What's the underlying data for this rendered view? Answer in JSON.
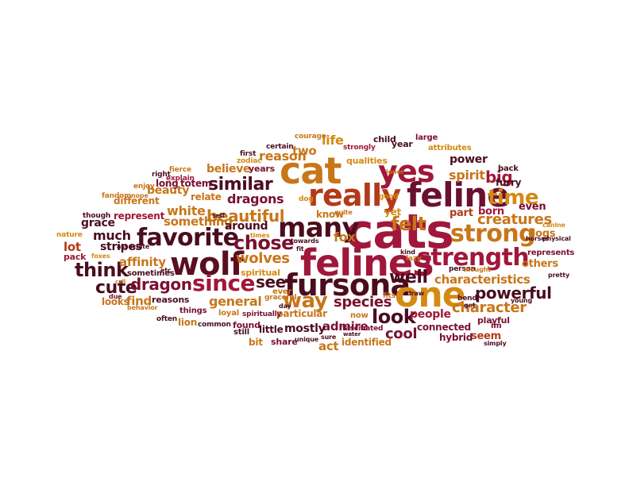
{
  "colors": {
    "dark_maroon": "#4a0d1e",
    "maroon": "#7a1030",
    "crimson": "#a0173a",
    "rust": "#b8451a",
    "orange": "#d4731a",
    "amber": "#d9960f"
  },
  "words": [
    {
      "text": "cats",
      "color": "#a0173a"
    },
    {
      "text": "felines",
      "color": "#a0173a"
    },
    {
      "text": "fursona",
      "color": "#4a0d1e"
    },
    {
      "text": "cat",
      "color": "#c8761a"
    },
    {
      "text": "feline",
      "color": "#6a1030"
    },
    {
      "text": "one",
      "color": "#d48a12"
    },
    {
      "text": "wolf",
      "color": "#5a0f20"
    },
    {
      "text": "many",
      "color": "#4a0d1e"
    },
    {
      "text": "really",
      "color": "#b23a1a"
    },
    {
      "text": "yes",
      "color": "#a0173a"
    },
    {
      "text": "favorite",
      "color": "#4a0d1e"
    },
    {
      "text": "strength",
      "color": "#a0173a"
    },
    {
      "text": "strong",
      "color": "#c8761a"
    },
    {
      "text": "since",
      "color": "#a0173a"
    },
    {
      "text": "way",
      "color": "#c8761a"
    },
    {
      "text": "time",
      "color": "#d48a12"
    },
    {
      "text": "look",
      "color": "#4a0d1e"
    },
    {
      "text": "chose",
      "color": "#7a1030"
    },
    {
      "text": "think",
      "color": "#4a0d1e"
    },
    {
      "text": "beautiful",
      "color": "#c8761a"
    },
    {
      "text": "felt",
      "color": "#c8761a"
    },
    {
      "text": "well",
      "color": "#4a0d1e"
    },
    {
      "text": "similar",
      "color": "#4a0d1e"
    },
    {
      "text": "cute",
      "color": "#4a0d1e"
    },
    {
      "text": "dragon",
      "color": "#7a1030"
    },
    {
      "text": "wolves",
      "color": "#c8761a"
    },
    {
      "text": "see",
      "color": "#4a0d1e"
    },
    {
      "text": "creatures",
      "color": "#c8761a"
    },
    {
      "text": "characteristics",
      "color": "#c8761a"
    },
    {
      "text": "powerful",
      "color": "#4a0d1e"
    },
    {
      "text": "species",
      "color": "#7a1030"
    },
    {
      "text": "character",
      "color": "#c8761a"
    },
    {
      "text": "big",
      "color": "#a0173a"
    },
    {
      "text": "spirit",
      "color": "#c8761a"
    },
    {
      "text": "reason",
      "color": "#c8761a"
    },
    {
      "text": "life",
      "color": "#d48a12"
    },
    {
      "text": "two",
      "color": "#c8761a"
    },
    {
      "text": "white",
      "color": "#c8761a"
    },
    {
      "text": "something",
      "color": "#c8761a"
    },
    {
      "text": "dragons",
      "color": "#7a1030"
    },
    {
      "text": "around",
      "color": "#4a0d1e"
    },
    {
      "text": "much",
      "color": "#4a0d1e"
    },
    {
      "text": "cool",
      "color": "#7a1030"
    },
    {
      "text": "general",
      "color": "#c8761a"
    },
    {
      "text": "affinity",
      "color": "#c8761a"
    },
    {
      "text": "stripes",
      "color": "#4a0d1e"
    },
    {
      "text": "lot",
      "color": "#b23a1a"
    },
    {
      "text": "fox",
      "color": "#c8761a"
    },
    {
      "text": "admire",
      "color": "#7a1030"
    },
    {
      "text": "people",
      "color": "#a0173a"
    },
    {
      "text": "act",
      "color": "#c8761a"
    },
    {
      "text": "mostly",
      "color": "#4a0d1e"
    },
    {
      "text": "power",
      "color": "#4a0d1e"
    },
    {
      "text": "others",
      "color": "#c8761a"
    },
    {
      "text": "find",
      "color": "#c8761a"
    },
    {
      "text": "beauty",
      "color": "#c8761a"
    },
    {
      "text": "grace",
      "color": "#4a0d1e"
    },
    {
      "text": "believe",
      "color": "#c8761a"
    },
    {
      "text": "even",
      "color": "#7a1030"
    },
    {
      "text": "dogs",
      "color": "#c8761a"
    },
    {
      "text": "furry",
      "color": "#4a0d1e"
    },
    {
      "text": "part",
      "color": "#b23a1a"
    },
    {
      "text": "born",
      "color": "#a0173a"
    },
    {
      "text": "seem",
      "color": "#b23a1a"
    },
    {
      "text": "hybrid",
      "color": "#7a1030"
    },
    {
      "text": "connected",
      "color": "#7a1030"
    },
    {
      "text": "identified",
      "color": "#c8761a"
    },
    {
      "text": "particular",
      "color": "#c8761a"
    },
    {
      "text": "spiritual",
      "color": "#d48a12"
    },
    {
      "text": "yet",
      "color": "#d48a12"
    },
    {
      "text": "know",
      "color": "#c8761a"
    },
    {
      "text": "qualities",
      "color": "#d48a12"
    },
    {
      "text": "years",
      "color": "#7a1030"
    },
    {
      "text": "totem",
      "color": "#7a1030"
    },
    {
      "text": "relate",
      "color": "#c8761a"
    },
    {
      "text": "long",
      "color": "#7a1030"
    },
    {
      "text": "represent",
      "color": "#a0173a"
    },
    {
      "text": "different",
      "color": "#c8761a"
    },
    {
      "text": "reasons",
      "color": "#4a0d1e"
    },
    {
      "text": "looks",
      "color": "#c8761a"
    },
    {
      "text": "lion",
      "color": "#c8761a"
    },
    {
      "text": "little",
      "color": "#4a0d1e"
    },
    {
      "text": "bit",
      "color": "#c8761a"
    },
    {
      "text": "share",
      "color": "#7a1030"
    },
    {
      "text": "found",
      "color": "#7a1030"
    },
    {
      "text": "sometimes",
      "color": "#4a0d1e"
    },
    {
      "text": "represents",
      "color": "#7a1030"
    },
    {
      "text": "back",
      "color": "#4a0d1e"
    },
    {
      "text": "child",
      "color": "#4a0d1e"
    },
    {
      "text": "year",
      "color": "#4a0d1e"
    },
    {
      "text": "large",
      "color": "#7a1030"
    },
    {
      "text": "attributes",
      "color": "#d48a12"
    },
    {
      "text": "courage",
      "color": "#c8761a"
    },
    {
      "text": "strongly",
      "color": "#a0173a"
    },
    {
      "text": "certain",
      "color": "#4a0d1e"
    },
    {
      "text": "first",
      "color": "#4a0d1e"
    },
    {
      "text": "zodiac",
      "color": "#d48a12"
    },
    {
      "text": "fierce",
      "color": "#c8761a"
    },
    {
      "text": "explain",
      "color": "#a0173a"
    },
    {
      "text": "right",
      "color": "#4a0d1e"
    },
    {
      "text": "enjoy",
      "color": "#c8761a"
    },
    {
      "text": "fandom",
      "color": "#c8761a"
    },
    {
      "text": "nope",
      "color": "#c8761a"
    },
    {
      "text": "though",
      "color": "#4a0d1e"
    },
    {
      "text": "nature",
      "color": "#d48a12"
    },
    {
      "text": "pack",
      "color": "#a0173a"
    },
    {
      "text": "foxes",
      "color": "#d48a12"
    },
    {
      "text": "associate",
      "color": "#4a0d1e"
    },
    {
      "text": "due",
      "color": "#7a1030"
    },
    {
      "text": "behavior",
      "color": "#c8761a"
    },
    {
      "text": "often",
      "color": "#4a0d1e"
    },
    {
      "text": "things",
      "color": "#7a1030"
    },
    {
      "text": "loyal",
      "color": "#c8761a"
    },
    {
      "text": "common",
      "color": "#4a0d1e"
    },
    {
      "text": "spiritually",
      "color": "#7a1030"
    },
    {
      "text": "graceful",
      "color": "#c8761a"
    },
    {
      "text": "day",
      "color": "#4a0d1e"
    },
    {
      "text": "ever",
      "color": "#c8761a"
    },
    {
      "text": "still",
      "color": "#4a0d1e"
    },
    {
      "text": "unique",
      "color": "#4a0d1e"
    },
    {
      "text": "sure",
      "color": "#4a0d1e"
    },
    {
      "text": "now",
      "color": "#c8761a"
    },
    {
      "text": "fascinated",
      "color": "#7a1030"
    },
    {
      "text": "water",
      "color": "#4a0d1e"
    },
    {
      "text": "fits",
      "color": "#c8761a"
    },
    {
      "text": "draw",
      "color": "#4a0d1e"
    },
    {
      "text": "lazy",
      "color": "#c8761a"
    },
    {
      "text": "kind",
      "color": "#4a0d1e"
    },
    {
      "text": "person",
      "color": "#4a0d1e"
    },
    {
      "text": "thought",
      "color": "#c8761a"
    },
    {
      "text": "bend",
      "color": "#4a0d1e"
    },
    {
      "text": "get",
      "color": "#4a0d1e"
    },
    {
      "text": "playful",
      "color": "#7a1030"
    },
    {
      "text": "im",
      "color": "#7a1030"
    },
    {
      "text": "simply",
      "color": "#4a0d1e"
    },
    {
      "text": "young",
      "color": "#4a0d1e"
    },
    {
      "text": "pretty",
      "color": "#4a0d1e"
    },
    {
      "text": "canine",
      "color": "#d48a12"
    },
    {
      "text": "horses",
      "color": "#4a0d1e"
    },
    {
      "text": "physical",
      "color": "#4a0d1e"
    },
    {
      "text": "good",
      "color": "#d48a12"
    },
    {
      "text": "quite",
      "color": "#c8761a"
    },
    {
      "text": "loner",
      "color": "#c8761a"
    },
    {
      "text": "dog",
      "color": "#d48a12"
    },
    {
      "text": "self",
      "color": "#4a0d1e"
    },
    {
      "text": "times",
      "color": "#d48a12"
    },
    {
      "text": "fit",
      "color": "#4a0d1e"
    },
    {
      "text": "towards",
      "color": "#4a0d1e"
    },
    {
      "text": "etc",
      "color": "#4a0d1e"
    },
    {
      "text": "call",
      "color": "#c8761a"
    }
  ]
}
